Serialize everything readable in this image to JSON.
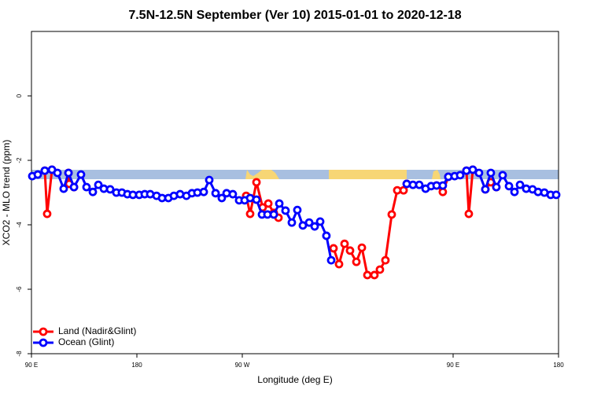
{
  "chart_data": {
    "type": "line",
    "title": "7.5N-12.5N September (Ver 10)   2015-01-01 to 2020-12-18",
    "x_label": "Longitude (deg E)",
    "y_label": "XCO2 - MLO trend (ppm)",
    "xlim": [
      90,
      540
    ],
    "ylim": [
      -8,
      2
    ],
    "xticks": [
      {
        "value": 90,
        "label": "90 E"
      },
      {
        "value": 180,
        "label": "180"
      },
      {
        "value": 270,
        "label": "90 W"
      },
      {
        "value": 450,
        "label": "90 E"
      },
      {
        "value": 540,
        "label": "180"
      }
    ],
    "yticks": [
      0,
      -2,
      -4,
      -6,
      -8
    ],
    "legend": "bottom-left",
    "series": [
      {
        "name": "Land (Nadir&Glint)",
        "color": "#ff0000",
        "x": [
          101.4,
          103.4,
          107.5,
          null,
          121.6,
          122.2,
          126.3,
          null,
          273.3,
          276.7,
          282.1,
          287.4,
          292.2,
          296.9,
          300.9,
          null,
          347.9,
          352.6,
          357.3,
          362.0,
          367.4,
          372.1,
          376.8,
          382.8,
          387.5,
          392.2,
          397.6,
          402.3,
          407.7,
          410.4,
          null,
          435.9,
          441.2,
          445.9,
          null,
          461.4,
          463.4,
          466.8,
          null,
          477.5,
          482.2,
          486.9
        ],
        "values": [
          -2.32,
          -3.66,
          -2.29,
          null,
          -2.39,
          -2.73,
          -2.83,
          null,
          -3.1,
          -3.66,
          -2.68,
          -3.46,
          -3.34,
          -3.63,
          -3.78,
          null,
          -4.73,
          -5.22,
          -4.59,
          -4.8,
          -5.15,
          -4.71,
          -5.56,
          -5.56,
          -5.39,
          -5.1,
          -3.68,
          -2.93,
          -2.93,
          -2.73,
          null,
          -2.78,
          -2.98,
          -2.51,
          null,
          -2.32,
          -3.66,
          -2.29,
          null,
          -2.9,
          -2.68,
          -2.83
        ]
      },
      {
        "name": "Ocean (Glint)",
        "color": "#0000ff",
        "x": [
          90.7,
          95.4,
          101.4,
          107.5,
          112.2,
          117.5,
          121.6,
          126.3,
          132.3,
          137.0,
          142.4,
          147.1,
          151.8,
          157.2,
          162.5,
          167.2,
          171.9,
          176.6,
          182.0,
          186.7,
          191.4,
          196.8,
          201.5,
          206.9,
          211.6,
          216.9,
          222.3,
          227.0,
          231.7,
          237.1,
          241.8,
          247.2,
          252.5,
          256.6,
          261.9,
          267.3,
          272.0,
          276.7,
          282.1,
          286.8,
          291.5,
          296.9,
          301.6,
          306.9,
          312.3,
          317.0,
          321.7,
          327.1,
          331.8,
          336.5,
          341.8,
          345.9,
          null,
          410.4,
          415.7,
          421.1,
          426.5,
          431.2,
          435.9,
          441.2,
          445.9,
          451.3,
          456.0,
          461.4,
          466.8,
          472.1,
          477.5,
          482.2,
          486.9,
          492.3,
          497.7,
          502.4,
          507.1,
          512.4,
          517.8,
          522.5,
          527.9,
          533.3,
          538.0
        ],
        "values": [
          -2.49,
          -2.44,
          -2.32,
          -2.29,
          -2.39,
          -2.88,
          -2.39,
          -2.83,
          -2.44,
          -2.83,
          -2.98,
          -2.76,
          -2.88,
          -2.9,
          -3.0,
          -3.0,
          -3.05,
          -3.07,
          -3.07,
          -3.05,
          -3.05,
          -3.1,
          -3.17,
          -3.17,
          -3.1,
          -3.05,
          -3.1,
          -3.02,
          -3.0,
          -2.98,
          -2.61,
          -3.02,
          -3.17,
          -3.02,
          -3.05,
          -3.24,
          -3.24,
          -3.17,
          -3.22,
          -3.68,
          -3.68,
          -3.68,
          -3.34,
          -3.56,
          -3.93,
          -3.54,
          -4.02,
          -3.93,
          -4.05,
          -3.9,
          -4.34,
          -5.1,
          null,
          -2.73,
          -2.76,
          -2.76,
          -2.88,
          -2.8,
          -2.78,
          -2.78,
          -2.51,
          -2.49,
          -2.46,
          -2.32,
          -2.29,
          -2.39,
          -2.9,
          -2.39,
          -2.83,
          -2.46,
          -2.8,
          -2.98,
          -2.76,
          -2.88,
          -2.9,
          -2.98,
          -3.0,
          -3.07,
          -3.07
        ]
      }
    ]
  }
}
